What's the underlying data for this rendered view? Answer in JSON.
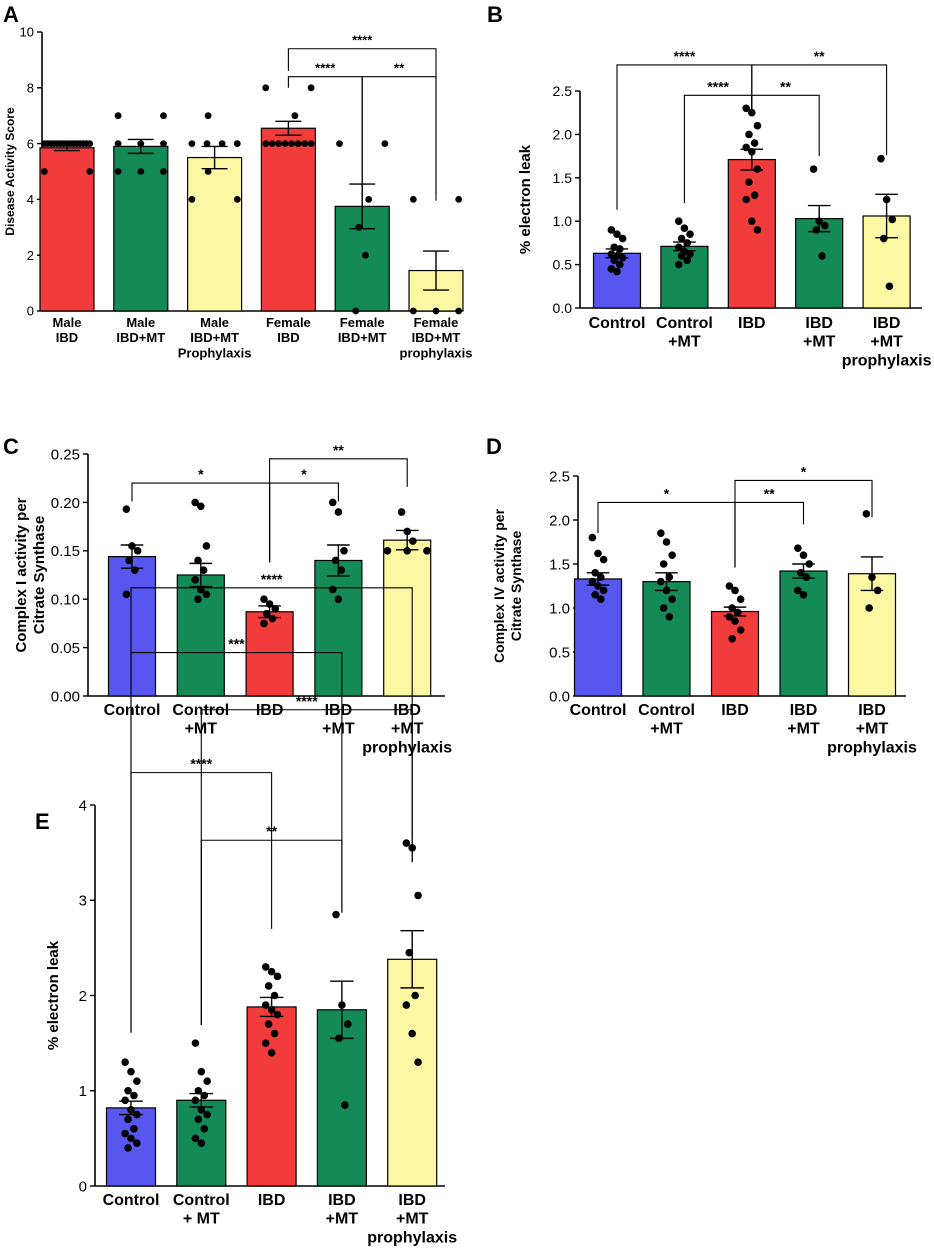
{
  "colors": {
    "blue": "#5757f0",
    "green": "#148a57",
    "red": "#f23b3b",
    "yellow": "#fbf7a2",
    "axis": "#000000"
  },
  "chart_data": [
    {
      "id": "A",
      "panel_label": "A",
      "type": "bar",
      "ylabel": "Disease Activity Score",
      "ylim": [
        0,
        10
      ],
      "yticks": [
        "0",
        "2",
        "4",
        "6",
        "8",
        "10"
      ],
      "categories": [
        [
          "Male",
          "IBD"
        ],
        [
          "Male",
          "IBD+MT"
        ],
        [
          "Male",
          "IBD+MT",
          "Prophylaxis"
        ],
        [
          "Female",
          "IBD"
        ],
        [
          "Female",
          "IBD+MT"
        ],
        [
          "Female",
          "IBD+MT",
          "prophylaxis"
        ]
      ],
      "bar_colors": [
        "red",
        "green",
        "yellow",
        "red",
        "green",
        "yellow"
      ],
      "values": [
        5.85,
        5.9,
        5.5,
        6.55,
        3.75,
        1.45
      ],
      "sem": [
        0.1,
        0.25,
        0.4,
        0.25,
        0.8,
        0.7
      ],
      "points": [
        [
          6,
          6,
          6,
          6,
          6,
          6,
          6,
          6,
          6,
          6,
          6,
          6,
          6,
          6,
          6,
          5,
          5
        ],
        [
          7,
          7,
          6,
          6,
          6,
          5,
          5,
          5
        ],
        [
          7,
          6,
          6,
          6,
          6,
          5,
          4,
          4
        ],
        [
          8,
          8,
          7,
          6,
          6,
          6,
          6,
          6,
          6,
          6,
          6
        ],
        [
          6,
          6,
          4,
          3,
          2,
          0
        ],
        [
          4,
          4,
          0,
          0,
          0
        ]
      ],
      "significance": [
        {
          "from": 3,
          "to": 5,
          "label": "****",
          "y": 9.4
        },
        {
          "from": 3,
          "to": 4,
          "label": "****",
          "y": 8.4,
          "tick_to": 4.2
        },
        {
          "from": 4,
          "to": 5,
          "label": "**",
          "y": 8.4,
          "tick_from": 4.2,
          "tick_to": 4.2
        }
      ]
    },
    {
      "id": "B",
      "panel_label": "B",
      "type": "bar",
      "ylabel": "% electron leak",
      "ylim": [
        0,
        2.5
      ],
      "yticks": [
        "0.0",
        "0.5",
        "1.0",
        "1.5",
        "2.0",
        "2.5"
      ],
      "categories": [
        [
          "Control"
        ],
        [
          "Control",
          "+MT"
        ],
        [
          "IBD"
        ],
        [
          "IBD",
          "+MT"
        ],
        [
          "IBD",
          "+MT",
          "prophylaxis"
        ]
      ],
      "bar_colors": [
        "blue",
        "green",
        "red",
        "green",
        "yellow"
      ],
      "values": [
        0.63,
        0.71,
        1.71,
        1.03,
        1.06
      ],
      "sem": [
        0.05,
        0.05,
        0.12,
        0.15,
        0.25
      ],
      "points": [
        [
          0.9,
          0.85,
          0.8,
          0.7,
          0.68,
          0.62,
          0.6,
          0.58,
          0.55,
          0.5,
          0.45,
          0.42
        ],
        [
          1.0,
          0.92,
          0.85,
          0.8,
          0.75,
          0.7,
          0.65,
          0.62,
          0.6,
          0.55,
          0.5
        ],
        [
          2.3,
          2.25,
          2.1,
          2.0,
          1.9,
          1.85,
          1.8,
          1.6,
          1.45,
          1.3,
          1.25,
          1.0,
          0.9
        ],
        [
          1.6,
          1.0,
          0.95,
          0.9,
          0.6
        ],
        [
          1.72,
          1.25,
          1.02,
          0.8,
          0.25
        ]
      ],
      "significance": [
        {
          "from": 0,
          "to": 2,
          "label": "****",
          "y": 2.8
        },
        {
          "from": 2,
          "to": 4,
          "label": "**",
          "y": 2.8
        },
        {
          "from": 1,
          "to": 2,
          "label": "****",
          "y": 2.45
        },
        {
          "from": 2,
          "to": 3,
          "label": "**",
          "y": 2.45,
          "tick_to": 1.75
        }
      ]
    },
    {
      "id": "C",
      "panel_label": "C",
      "type": "bar",
      "ylabel": [
        "Complex I activity per",
        "Citrate Synthase"
      ],
      "ylim": [
        0,
        0.25
      ],
      "yticks": [
        "0.00",
        "0.05",
        "0.10",
        "0.15",
        "0.20",
        "0.25"
      ],
      "categories": [
        [
          "Control"
        ],
        [
          "Control",
          "+MT"
        ],
        [
          "IBD"
        ],
        [
          "IBD",
          "+MT"
        ],
        [
          "IBD",
          "+MT",
          "prophylaxis"
        ]
      ],
      "bar_colors": [
        "blue",
        "green",
        "red",
        "green",
        "yellow"
      ],
      "values": [
        0.144,
        0.125,
        0.087,
        0.14,
        0.161
      ],
      "sem": [
        0.012,
        0.012,
        0.006,
        0.016,
        0.01
      ],
      "points": [
        [
          0.193,
          0.155,
          0.15,
          0.14,
          0.13,
          0.105
        ],
        [
          0.2,
          0.196,
          0.155,
          0.14,
          0.13,
          0.12,
          0.11,
          0.105,
          0.1
        ],
        [
          0.1,
          0.095,
          0.09,
          0.085,
          0.08,
          0.075
        ],
        [
          0.2,
          0.19,
          0.15,
          0.14,
          0.13,
          0.11,
          0.1
        ],
        [
          0.19,
          0.17,
          0.16,
          0.15,
          0.15,
          0.15
        ]
      ],
      "significance": [
        {
          "from": 0,
          "to": 2,
          "label": "*",
          "y": 0.22
        },
        {
          "from": 2,
          "to": 4,
          "label": "**",
          "y": 0.245
        },
        {
          "from": 2,
          "to": 3,
          "label": "*",
          "y": 0.22
        }
      ]
    },
    {
      "id": "D",
      "panel_label": "D",
      "type": "bar",
      "ylabel": [
        "Complex IV activity per",
        "Citrate Synthase"
      ],
      "ylim": [
        0,
        2.5
      ],
      "yticks": [
        "0.0",
        "0.5",
        "1.0",
        "1.5",
        "2.0",
        "2.5"
      ],
      "categories": [
        [
          "Control"
        ],
        [
          "Control",
          "+MT"
        ],
        [
          "IBD"
        ],
        [
          "IBD",
          "+MT"
        ],
        [
          "IBD",
          "+MT",
          "prophylaxis"
        ]
      ],
      "bar_colors": [
        "blue",
        "green",
        "red",
        "green",
        "yellow"
      ],
      "values": [
        1.33,
        1.3,
        0.96,
        1.42,
        1.39
      ],
      "sem": [
        0.07,
        0.1,
        0.05,
        0.08,
        0.19
      ],
      "points": [
        [
          1.8,
          1.62,
          1.55,
          1.4,
          1.35,
          1.3,
          1.25,
          1.2,
          1.15,
          1.1
        ],
        [
          1.85,
          1.75,
          1.6,
          1.5,
          1.35,
          1.3,
          1.2,
          1.1,
          1.0,
          0.9
        ],
        [
          1.25,
          1.2,
          1.1,
          1.0,
          0.95,
          0.9,
          0.85,
          0.75,
          0.65
        ],
        [
          1.68,
          1.6,
          1.5,
          1.4,
          1.35,
          1.2,
          1.15
        ],
        [
          2.07,
          1.35,
          1.2,
          1.0
        ]
      ],
      "significance": [
        {
          "from": 0,
          "to": 2,
          "label": "*",
          "y": 2.2
        },
        {
          "from": 2,
          "to": 4,
          "label": "*",
          "y": 2.45
        },
        {
          "from": 2,
          "to": 3,
          "label": "**",
          "y": 2.2
        }
      ]
    },
    {
      "id": "E",
      "panel_label": "E",
      "type": "bar",
      "ylabel": "% electron leak",
      "ylim": [
        0,
        4
      ],
      "yticks": [
        "0",
        "1",
        "2",
        "3",
        "4"
      ],
      "categories": [
        [
          "Control"
        ],
        [
          "Control",
          "+ MT"
        ],
        [
          "IBD"
        ],
        [
          "IBD",
          "+MT"
        ],
        [
          "IBD",
          "+MT",
          "prophylaxis"
        ]
      ],
      "bar_colors": [
        "blue",
        "green",
        "red",
        "green",
        "yellow"
      ],
      "values": [
        0.82,
        0.9,
        1.88,
        1.85,
        2.38
      ],
      "sem": [
        0.07,
        0.07,
        0.1,
        0.3,
        0.3
      ],
      "points": [
        [
          1.3,
          1.2,
          1.1,
          1.0,
          0.95,
          0.9,
          0.8,
          0.75,
          0.7,
          0.6,
          0.55,
          0.5,
          0.45,
          0.4
        ],
        [
          1.5,
          1.2,
          1.1,
          1.0,
          0.95,
          0.9,
          0.8,
          0.75,
          0.7,
          0.6,
          0.5,
          0.45
        ],
        [
          2.3,
          2.25,
          2.2,
          2.1,
          2.0,
          1.9,
          1.85,
          1.8,
          1.7,
          1.6,
          1.5,
          1.4
        ],
        [
          2.85,
          1.9,
          1.7,
          1.55,
          0.85
        ],
        [
          3.6,
          3.55,
          3.05,
          2.45,
          2.0,
          1.9,
          1.6,
          1.3
        ]
      ],
      "significance": [
        {
          "from": 0,
          "to": 4,
          "label": "****",
          "y": 6.28
        },
        {
          "from": 0,
          "to": 3,
          "label": "***",
          "y": 5.6
        },
        {
          "from": 1,
          "to": 4,
          "label": "****",
          "y": 5.0
        },
        {
          "from": 0,
          "to": 2,
          "label": "****",
          "y": 4.34
        },
        {
          "from": 1,
          "to": 3,
          "label": "**",
          "y": 3.63
        }
      ]
    }
  ]
}
